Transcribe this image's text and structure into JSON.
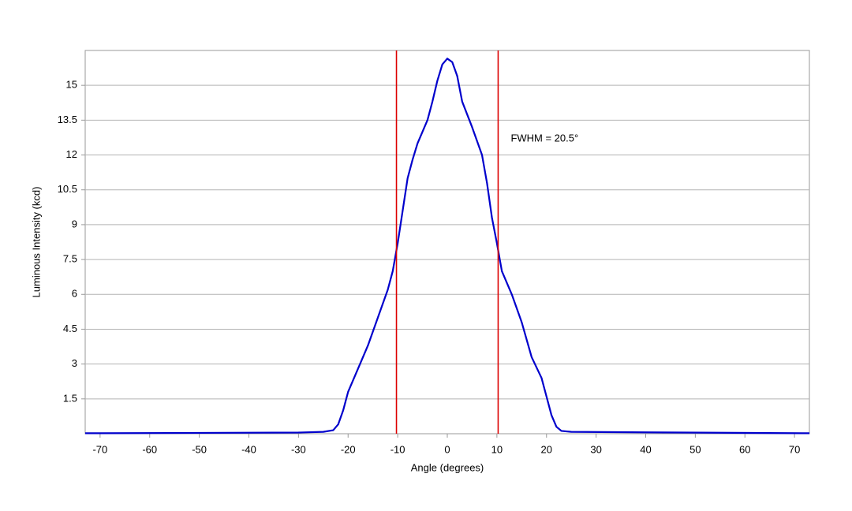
{
  "chart_data": {
    "type": "line",
    "x_label": "Angle (degrees)",
    "y_label": "Luminous Intensity (kcd)",
    "annotation": "FWHM = 20.5°",
    "x": [
      -73,
      -30,
      -25,
      -23,
      -22,
      -21,
      -20,
      -18,
      -16,
      -14,
      -12,
      -11,
      -10,
      -9,
      -8,
      -7,
      -6,
      -4,
      -3,
      -2,
      -1,
      0,
      1,
      2,
      3,
      5,
      7,
      8,
      9,
      10,
      11,
      13,
      15,
      17,
      19,
      20,
      21,
      22,
      23,
      25,
      40,
      73
    ],
    "series": [
      {
        "color": "#0000cc",
        "values": [
          0.02,
          0.05,
          0.08,
          0.15,
          0.4,
          1.0,
          1.8,
          2.8,
          3.8,
          5.0,
          6.2,
          7.0,
          8.2,
          9.6,
          11.0,
          11.8,
          12.5,
          13.5,
          14.3,
          15.2,
          15.9,
          16.15,
          16.0,
          15.4,
          14.3,
          13.2,
          12.0,
          10.8,
          9.3,
          8.2,
          7.0,
          6.0,
          4.8,
          3.3,
          2.4,
          1.6,
          0.8,
          0.3,
          0.12,
          0.08,
          0.06,
          0.02
        ]
      }
    ],
    "vlines": [
      -10.25,
      10.25
    ],
    "vline_color": "#dd0000",
    "xlim": [
      -73,
      73
    ],
    "xticks": [
      -70,
      -60,
      -50,
      -40,
      -30,
      -20,
      -10,
      0,
      10,
      20,
      30,
      40,
      50,
      60,
      70
    ],
    "ylim": [
      0,
      16.5
    ],
    "yticks": [
      1.5,
      3,
      4.5,
      6,
      7.5,
      9,
      10.5,
      12,
      13.5,
      15
    ],
    "grid": true
  }
}
